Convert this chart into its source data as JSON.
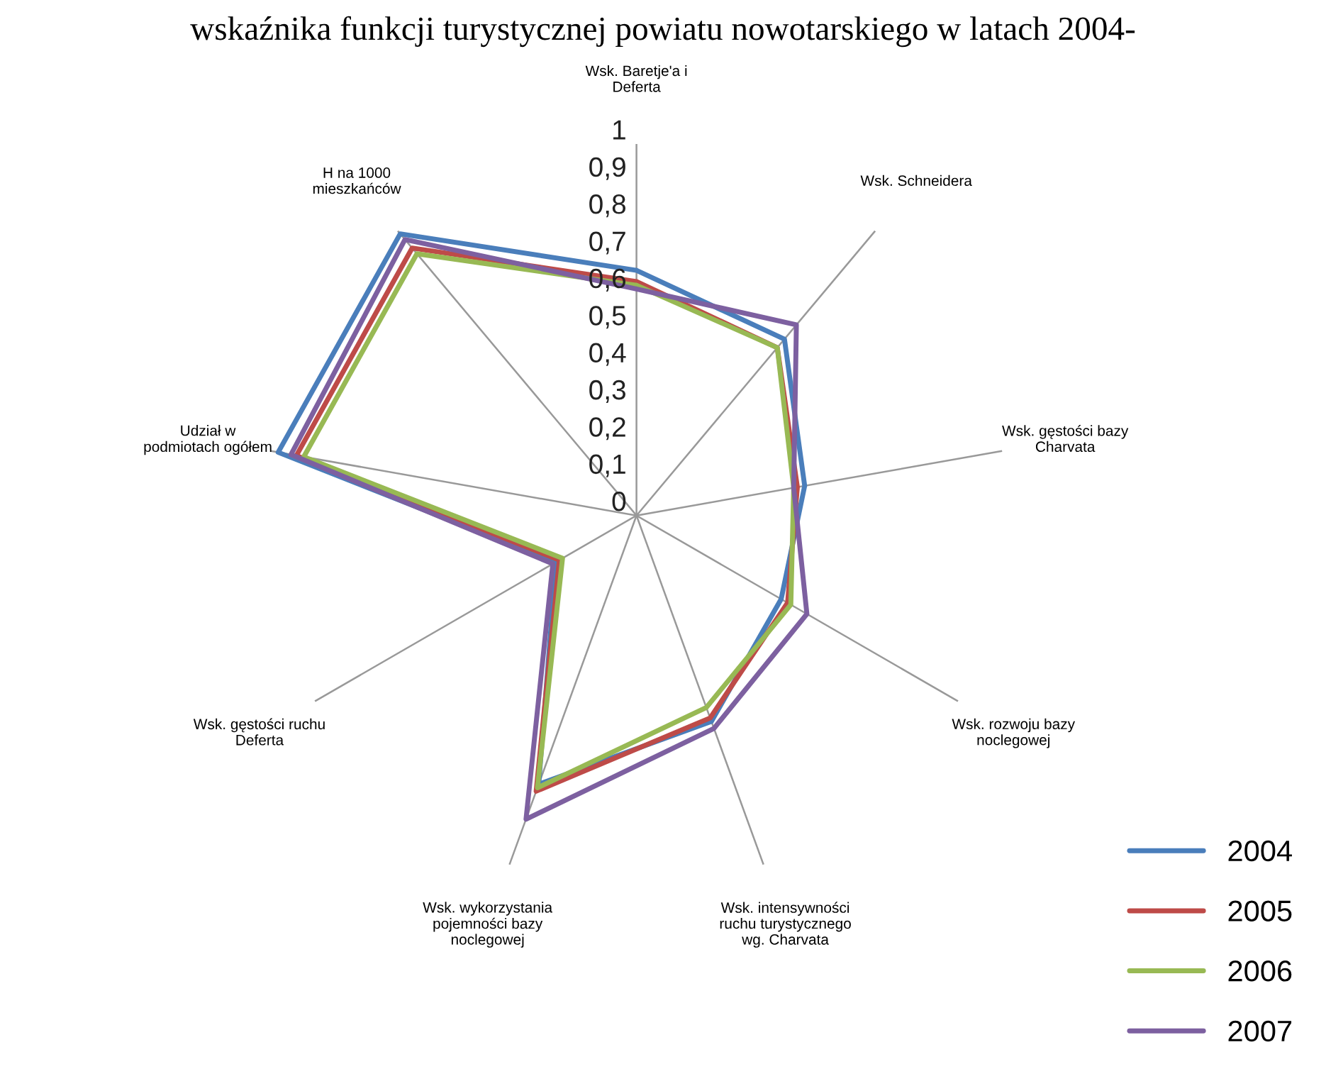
{
  "chart_data": {
    "type": "radar",
    "title": "wskaźnika funkcji turystycznej powiatu nowotarskiego w latach 2004-",
    "categories": [
      "Wsk. Baretje'a i\nDeferta",
      "Wsk. Schneidera",
      "Wsk. gęstości bazy\nCharvata",
      "Wsk. rozwoju bazy\nnoclegowej",
      "Wsk. intensywności\nruchu turystycznego\nwg. Charvata",
      "Wsk. wykorzystania\npojemności bazy\nnoclegowej",
      "Wsk. gęstości ruchu\nDeferta",
      "Udział w\npodmiotach ogółem",
      "H na 1000\nmieszkańców"
    ],
    "series": [
      {
        "name": "2004",
        "color": "#4a7ebb",
        "values": [
          0.66,
          0.62,
          0.46,
          0.45,
          0.59,
          0.77,
          0.25,
          0.98,
          0.99
        ]
      },
      {
        "name": "2005",
        "color": "#be4b48",
        "values": [
          0.63,
          0.59,
          0.44,
          0.47,
          0.58,
          0.79,
          0.24,
          0.93,
          0.94
        ]
      },
      {
        "name": "2006",
        "color": "#98b954",
        "values": [
          0.62,
          0.59,
          0.43,
          0.48,
          0.55,
          0.78,
          0.23,
          0.91,
          0.92
        ]
      },
      {
        "name": "2007",
        "color": "#7d60a0",
        "values": [
          0.61,
          0.67,
          0.43,
          0.53,
          0.61,
          0.87,
          0.26,
          0.945,
          0.97
        ]
      }
    ],
    "ylim": [
      0,
      1
    ],
    "yticks": [
      0,
      {
        "value": 0.1,
        "label": "0,1"
      },
      {
        "value": 0.2,
        "label": "0,2"
      },
      {
        "value": 0.3,
        "label": "0,3"
      },
      {
        "value": 0.4,
        "label": "0,4"
      },
      {
        "value": 0.5,
        "label": "0,5"
      },
      {
        "value": 0.6,
        "label": "0,6"
      },
      {
        "value": 0.7,
        "label": "0,7"
      },
      {
        "value": 0.8,
        "label": "0,8"
      },
      {
        "value": 0.9,
        "label": "0,9"
      },
      1
    ],
    "grid": "x",
    "legend": "bottom right",
    "marker": "none",
    "line_style": "solid"
  }
}
